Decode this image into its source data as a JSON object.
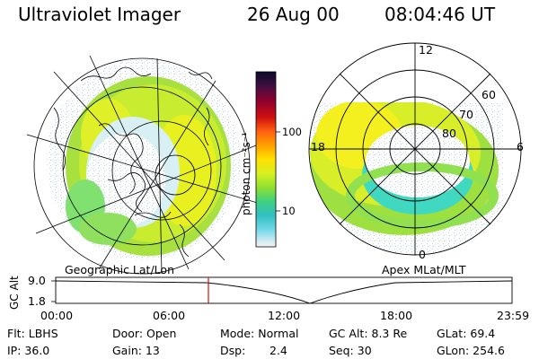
{
  "header": {
    "instrument": "Ultraviolet Imager",
    "date": "26 Aug 00",
    "time": "08:04:46 UT"
  },
  "colorbar": {
    "unit_label": "photon cm⁻²s⁻¹",
    "ticks": [
      "100",
      "10"
    ],
    "stops": [
      "#0a0a2a",
      "#401040",
      "#8a0030",
      "#d01010",
      "#ff6010",
      "#ffa000",
      "#ffe000",
      "#d8f020",
      "#90e030",
      "#40d080",
      "#30c0c0",
      "#70d8e8",
      "#c8e8f0",
      "#f4f4f4"
    ]
  },
  "left_panel": {
    "caption": "Geographic Lat/Lon"
  },
  "right_panel": {
    "caption": "Apex MLat/MLT",
    "mlt_labels": {
      "top": "12",
      "left": "18",
      "right": "6",
      "bottom": "0"
    },
    "lat_labels": [
      "60",
      "70",
      "80"
    ]
  },
  "altitude_plot": {
    "ylabel": "GC Alt",
    "yticks": [
      "9.0",
      "1.8"
    ],
    "xticks": [
      "00:00",
      "06:00",
      "12:00",
      "18:00",
      "23:59"
    ],
    "marker_time": "08:04:46",
    "marker_color": "#d01010"
  },
  "info": {
    "filter": "Flt: LBHS",
    "ip": "IP: 36.0",
    "door": "Door: Open",
    "gain": "Gain: 13",
    "mode": "Mode: Normal",
    "dsp_label": "Dsp:",
    "dsp_value": "2.4",
    "gc_alt": "GC Alt: 8.3 Re",
    "seq": "Seq: 30",
    "glat": "GLat: 69.4",
    "glon": "GLon: 254.6"
  }
}
